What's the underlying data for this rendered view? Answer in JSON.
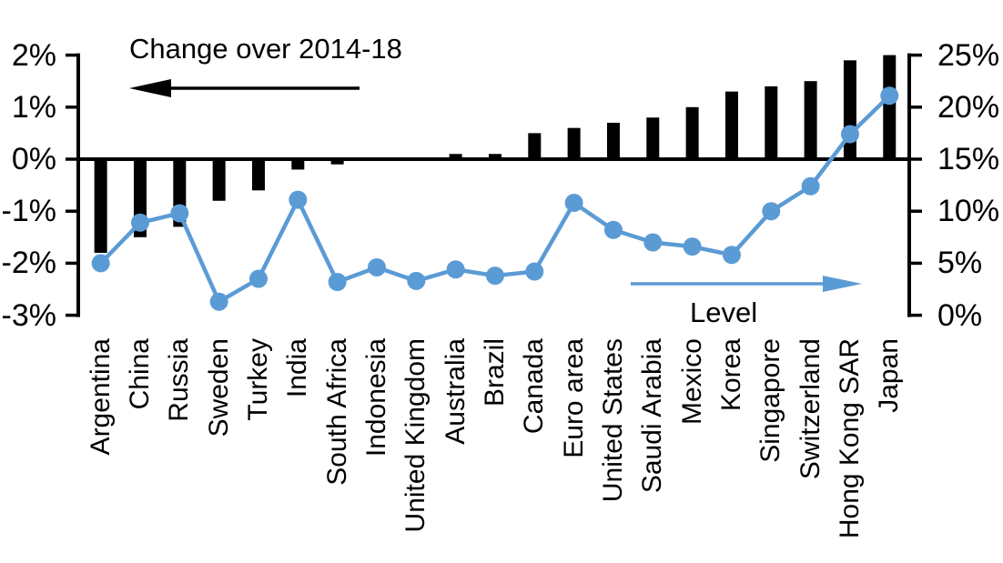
{
  "chart_data": {
    "type": "combo-bar-line",
    "categories": [
      "Argentina",
      "China",
      "Russia",
      "Sweden",
      "Turkey",
      "India",
      "South Africa",
      "Indonesia",
      "United Kingdom",
      "Australia",
      "Brazil",
      "Canada",
      "Euro area",
      "United States",
      "Saudi Arabia",
      "Mexico",
      "Korea",
      "Singapore",
      "Switzerland",
      "Hong Kong SAR",
      "Japan"
    ],
    "series": [
      {
        "name": "Change over 2014-18",
        "type": "bar",
        "axis": "left",
        "unit": "%",
        "values": [
          -1.8,
          -1.5,
          -1.3,
          -0.8,
          -0.6,
          -0.2,
          -0.1,
          0,
          0,
          0.1,
          0.1,
          0.5,
          0.6,
          0.7,
          0.8,
          1.0,
          1.3,
          1.4,
          1.5,
          1.9,
          2.0
        ]
      },
      {
        "name": "Level",
        "type": "line",
        "axis": "right",
        "unit": "%",
        "values": [
          5.0,
          8.9,
          9.8,
          1.3,
          3.5,
          11.1,
          3.2,
          4.6,
          3.3,
          4.4,
          3.8,
          4.2,
          10.8,
          8.2,
          7.0,
          6.6,
          5.8,
          10.0,
          12.4,
          17.4,
          21.1
        ]
      }
    ],
    "left_axis": {
      "min": -3,
      "max": 2,
      "tick_values": [
        2,
        1,
        0,
        -1,
        -2,
        -3
      ],
      "tick_labels": [
        "2%",
        "1%",
        "0%",
        "-1%",
        "-2%",
        "-3%"
      ]
    },
    "right_axis": {
      "min": 0,
      "max": 25,
      "tick_values": [
        25,
        20,
        15,
        10,
        5,
        0
      ],
      "tick_labels": [
        "25%",
        "20%",
        "15%",
        "10%",
        "5%",
        "0%"
      ]
    },
    "annotations": [
      {
        "text": "Change over 2014-18",
        "arrow_direction": "left",
        "color": "#000000"
      },
      {
        "text": "Level",
        "arrow_direction": "right",
        "color": "#5B9BD5"
      }
    ],
    "colors": {
      "bar": "#000000",
      "line": "#5B9BD5",
      "axis": "#000000",
      "background": "#FFFFFF"
    },
    "grid": false,
    "xlabel": "",
    "x_tick_rotation_deg": 90
  }
}
